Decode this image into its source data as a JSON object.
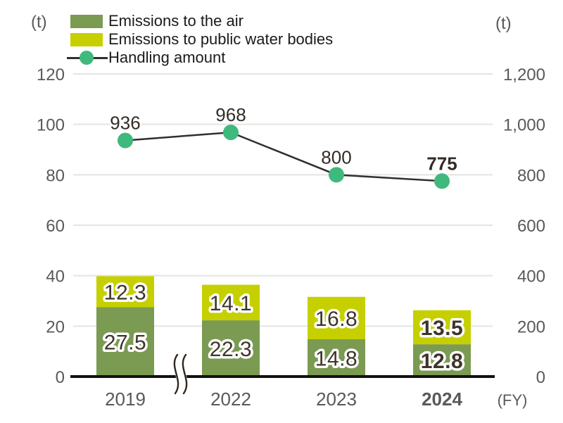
{
  "units": {
    "left": "(t)",
    "right": "(t)",
    "x": "(FY)"
  },
  "legend": {
    "items": [
      {
        "label": "Emissions to the air"
      },
      {
        "label": "Emissions to public water bodies"
      },
      {
        "label": "Handling amount"
      }
    ]
  },
  "colors": {
    "bar_air": "#7b9a52",
    "bar_water": "#c6d000",
    "marker": "#3fb97c",
    "line": "#332e2b",
    "grid": "#e4e4e4",
    "axis": "#111111",
    "tick_text": "#595959",
    "value_text": "#332c26",
    "bar_value_text": "#3e352b",
    "break_glyph": "#33261e"
  },
  "chart_data": {
    "type": "bar",
    "subtype": "stacked bars + line, dual y-axes",
    "categories": [
      "2019",
      "2022",
      "2023",
      "2024"
    ],
    "bar_series": [
      {
        "name": "Emissions to the air",
        "axis": "left",
        "values": [
          27.5,
          22.3,
          14.8,
          12.8
        ]
      },
      {
        "name": "Emissions to public water bodies",
        "axis": "left",
        "values": [
          12.3,
          14.1,
          16.8,
          13.5
        ]
      }
    ],
    "line_series": {
      "name": "Handling amount",
      "axis": "right",
      "values": [
        936,
        968,
        800,
        775
      ]
    },
    "axes": {
      "left": {
        "unit": "(t)",
        "min": 0,
        "max": 120,
        "step": 20,
        "ticks": [
          "0",
          "20",
          "40",
          "60",
          "80",
          "100",
          "120"
        ]
      },
      "right": {
        "unit": "(t)",
        "min": 0,
        "max": 1200,
        "step": 200,
        "ticks": [
          "0",
          "200",
          "400",
          "600",
          "800",
          "1,000",
          "1,200"
        ]
      },
      "x": {
        "unit": "(FY)",
        "break_after": "2019"
      }
    },
    "grid": true,
    "legend_position": "top-left",
    "emphasized_category": "2024"
  }
}
